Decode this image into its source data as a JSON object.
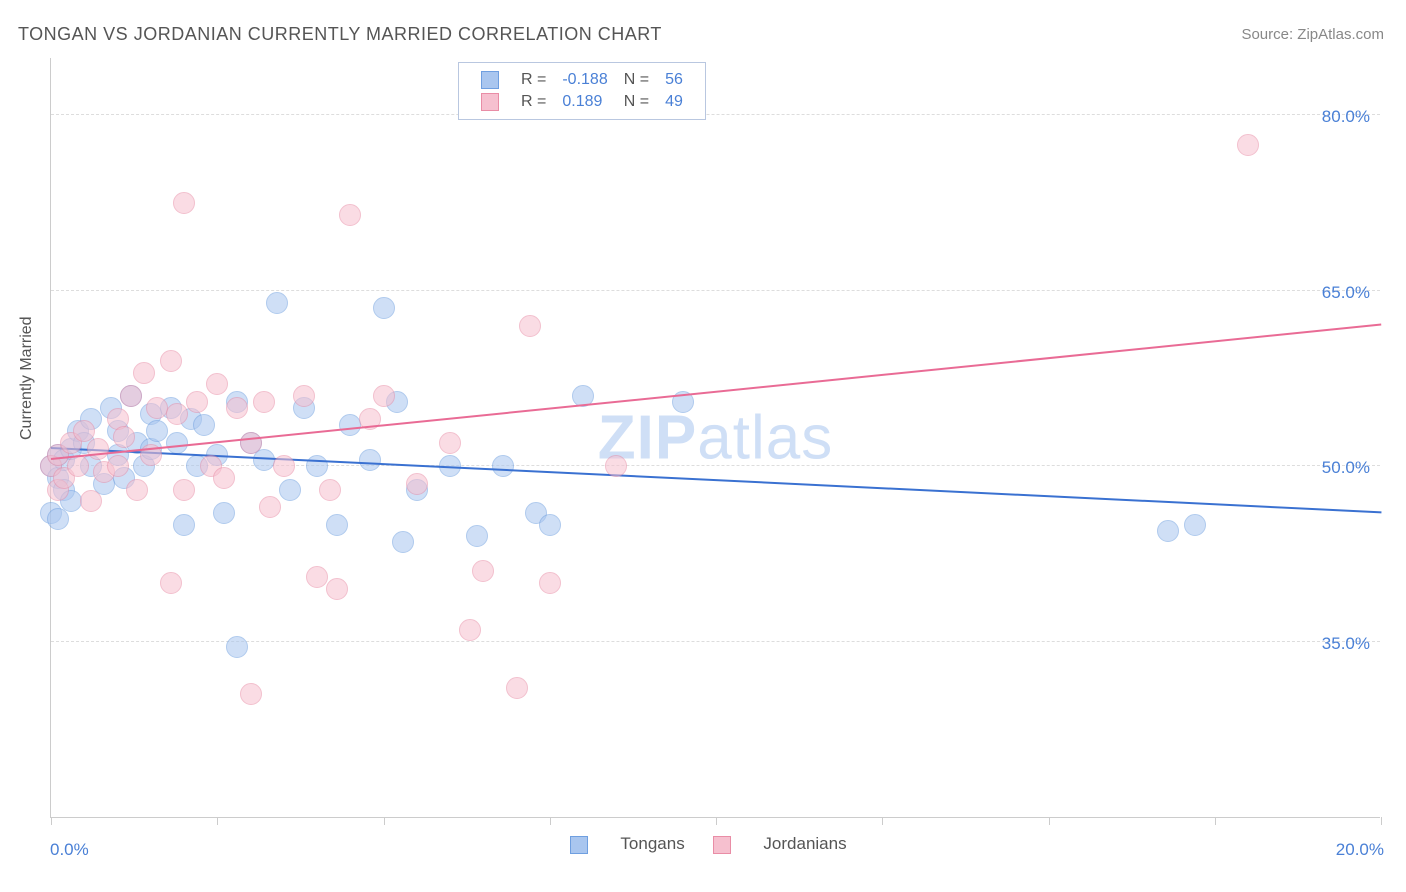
{
  "title": "TONGAN VS JORDANIAN CURRENTLY MARRIED CORRELATION CHART",
  "source": "Source: ZipAtlas.com",
  "watermark_a": "ZIP",
  "watermark_b": "atlas",
  "ylabel": "Currently Married",
  "chart": {
    "type": "scatter",
    "xlim": [
      0,
      20
    ],
    "ylim": [
      20,
      85
    ],
    "xtick_positions": [
      0,
      2.5,
      5,
      7.5,
      10,
      12.5,
      15,
      17.5,
      20
    ],
    "xtick_labels": {
      "0": "0.0%",
      "20": "20.0%"
    },
    "ytick_positions": [
      35,
      50,
      65,
      80
    ],
    "ytick_labels": [
      "35.0%",
      "50.0%",
      "65.0%",
      "80.0%"
    ],
    "grid_color": "#dddddd",
    "axis_color": "#cccccc",
    "background_color": "#ffffff",
    "marker_radius": 11,
    "marker_opacity": 0.55,
    "series": [
      {
        "name": "Tongans",
        "fill": "#a9c6ef",
        "stroke": "#6f9fe0",
        "line_color": "#3a71d1",
        "R": "-0.188",
        "N": "56",
        "trend": {
          "x0": 0,
          "y0": 51.5,
          "x1": 20,
          "y1": 46.0
        },
        "points": [
          [
            0.0,
            46.0
          ],
          [
            0.0,
            50.0
          ],
          [
            0.1,
            51.0
          ],
          [
            0.1,
            49.0
          ],
          [
            0.2,
            48.0
          ],
          [
            0.2,
            50.5
          ],
          [
            0.3,
            51.5
          ],
          [
            0.3,
            47.0
          ],
          [
            0.4,
            53.0
          ],
          [
            0.5,
            52.0
          ],
          [
            0.6,
            54.0
          ],
          [
            0.6,
            50.0
          ],
          [
            0.8,
            48.5
          ],
          [
            0.9,
            55.0
          ],
          [
            1.0,
            53.0
          ],
          [
            1.0,
            51.0
          ],
          [
            1.1,
            49.0
          ],
          [
            1.2,
            56.0
          ],
          [
            1.3,
            52.0
          ],
          [
            1.4,
            50.0
          ],
          [
            1.5,
            54.5
          ],
          [
            1.5,
            51.5
          ],
          [
            1.6,
            53.0
          ],
          [
            1.8,
            55.0
          ],
          [
            1.9,
            52.0
          ],
          [
            2.0,
            45.0
          ],
          [
            2.1,
            54.0
          ],
          [
            2.2,
            50.0
          ],
          [
            2.3,
            53.5
          ],
          [
            2.5,
            51.0
          ],
          [
            2.6,
            46.0
          ],
          [
            2.8,
            55.5
          ],
          [
            2.8,
            34.5
          ],
          [
            3.0,
            52.0
          ],
          [
            3.2,
            50.5
          ],
          [
            3.4,
            64.0
          ],
          [
            3.6,
            48.0
          ],
          [
            3.8,
            55.0
          ],
          [
            4.0,
            50.0
          ],
          [
            4.3,
            45.0
          ],
          [
            4.5,
            53.5
          ],
          [
            4.8,
            50.5
          ],
          [
            5.0,
            63.5
          ],
          [
            5.2,
            55.5
          ],
          [
            5.3,
            43.5
          ],
          [
            5.5,
            48.0
          ],
          [
            6.0,
            50.0
          ],
          [
            6.4,
            44.0
          ],
          [
            6.8,
            50.0
          ],
          [
            7.3,
            46.0
          ],
          [
            7.5,
            45.0
          ],
          [
            8.0,
            56.0
          ],
          [
            9.5,
            55.5
          ],
          [
            16.8,
            44.5
          ],
          [
            17.2,
            45.0
          ],
          [
            0.1,
            45.5
          ]
        ]
      },
      {
        "name": "Jordanians",
        "fill": "#f6c0cf",
        "stroke": "#e98da6",
        "line_color": "#e96b95",
        "R": "0.189",
        "N": "49",
        "trend": {
          "x0": 0,
          "y0": 50.5,
          "x1": 20,
          "y1": 62.0
        },
        "points": [
          [
            0.0,
            50.0
          ],
          [
            0.1,
            48.0
          ],
          [
            0.1,
            51.0
          ],
          [
            0.2,
            49.0
          ],
          [
            0.3,
            52.0
          ],
          [
            0.4,
            50.0
          ],
          [
            0.5,
            53.0
          ],
          [
            0.6,
            47.0
          ],
          [
            0.7,
            51.5
          ],
          [
            0.8,
            49.5
          ],
          [
            1.0,
            54.0
          ],
          [
            1.0,
            50.0
          ],
          [
            1.1,
            52.5
          ],
          [
            1.2,
            56.0
          ],
          [
            1.3,
            48.0
          ],
          [
            1.4,
            58.0
          ],
          [
            1.5,
            51.0
          ],
          [
            1.6,
            55.0
          ],
          [
            1.8,
            40.0
          ],
          [
            1.8,
            59.0
          ],
          [
            2.0,
            48.0
          ],
          [
            2.0,
            72.5
          ],
          [
            2.2,
            55.5
          ],
          [
            2.4,
            50.0
          ],
          [
            2.5,
            57.0
          ],
          [
            2.6,
            49.0
          ],
          [
            2.8,
            55.0
          ],
          [
            3.0,
            52.0
          ],
          [
            3.0,
            30.5
          ],
          [
            3.2,
            55.5
          ],
          [
            3.3,
            46.5
          ],
          [
            3.5,
            50.0
          ],
          [
            3.8,
            56.0
          ],
          [
            4.0,
            40.5
          ],
          [
            4.2,
            48.0
          ],
          [
            4.3,
            39.5
          ],
          [
            4.5,
            71.5
          ],
          [
            4.8,
            54.0
          ],
          [
            5.0,
            56.0
          ],
          [
            5.5,
            48.5
          ],
          [
            6.0,
            52.0
          ],
          [
            6.3,
            36.0
          ],
          [
            6.5,
            41.0
          ],
          [
            7.0,
            31.0
          ],
          [
            7.2,
            62.0
          ],
          [
            7.5,
            40.0
          ],
          [
            8.5,
            50.0
          ],
          [
            18.0,
            77.5
          ],
          [
            1.9,
            54.5
          ]
        ]
      }
    ]
  },
  "legend_top": {
    "rows": [
      {
        "swatch_fill": "#a9c6ef",
        "swatch_stroke": "#6f9fe0",
        "r_label": "R =",
        "r_val": "-0.188",
        "n_label": "N =",
        "n_val": "56"
      },
      {
        "swatch_fill": "#f6c0cf",
        "swatch_stroke": "#e98da6",
        "r_label": "R =",
        "r_val": "0.189",
        "n_label": "N =",
        "n_val": "49"
      }
    ]
  },
  "legend_bottom": [
    {
      "swatch_fill": "#a9c6ef",
      "swatch_stroke": "#6f9fe0",
      "label": "Tongans"
    },
    {
      "swatch_fill": "#f6c0cf",
      "swatch_stroke": "#e98da6",
      "label": "Jordanians"
    }
  ]
}
